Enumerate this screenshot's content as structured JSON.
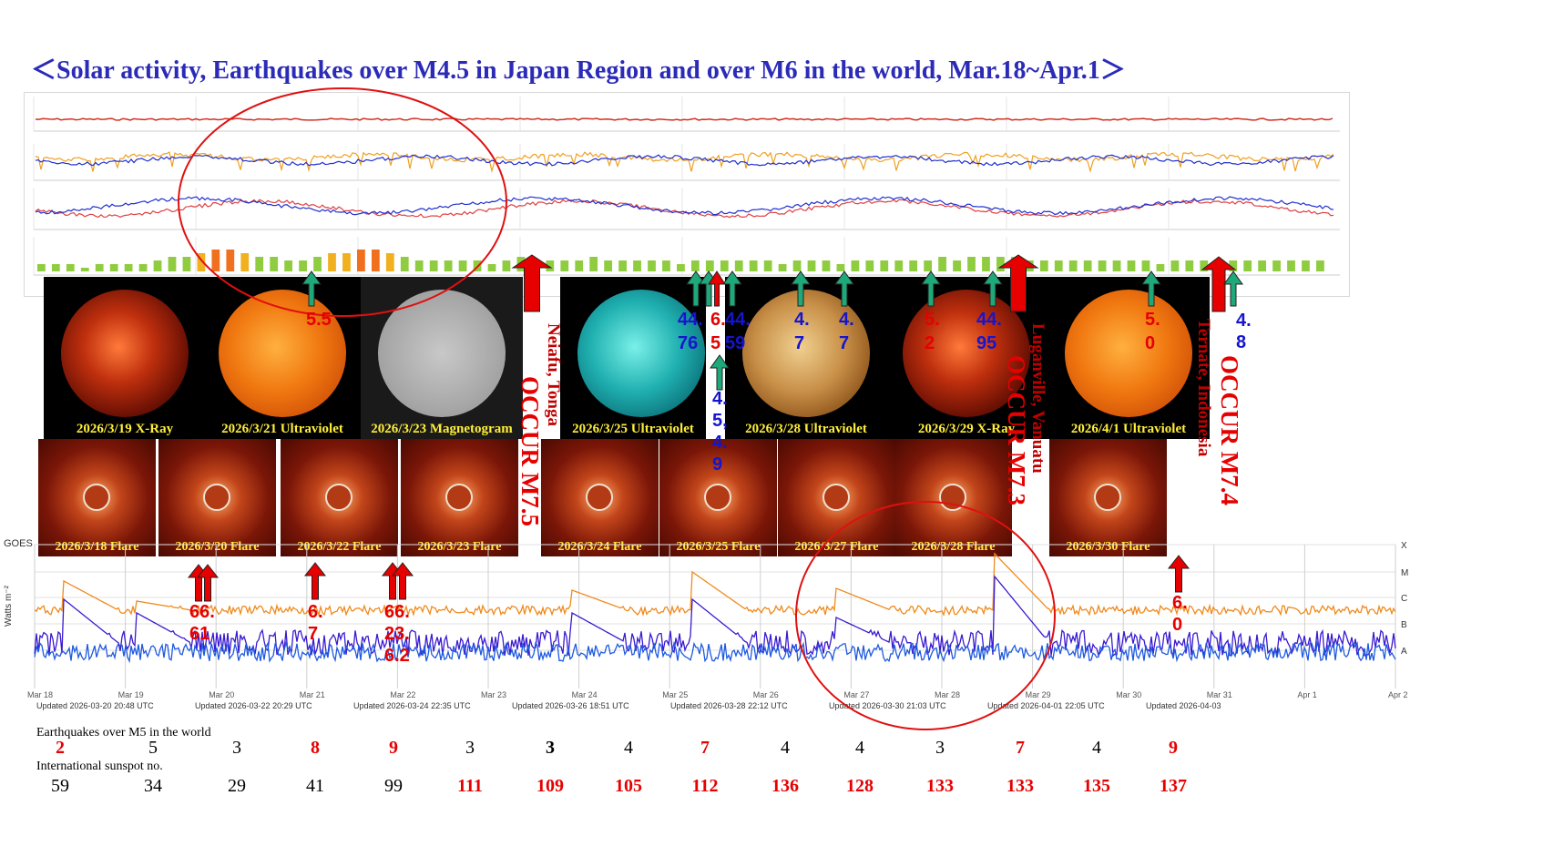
{
  "title": "＜Solar activity, Earthquakes over M4.5 in Japan Region and over M6 in the world, Mar.18~Apr.1＞",
  "colors": {
    "title": "#2b2bb8",
    "red_arrow": "#e60000",
    "green_arrow": "#1fa87a",
    "ray_orange": "#f08a1c",
    "ray_purple": "#3a1ad0",
    "annotation_circle": "#e01010"
  },
  "sun_images": [
    {
      "caption": "2026/3/19 X-Ray",
      "kind": "xray"
    },
    {
      "caption": "2026/3/21 Ultraviolet",
      "kind": "uv-orange"
    },
    {
      "caption": "2026/3/23 Magnetogram",
      "kind": "magnetogram"
    },
    {
      "caption": "2026/3/25 Ultraviolet",
      "kind": "uv-teal"
    },
    {
      "caption": "2026/3/28 Ultraviolet",
      "kind": "uv-bronze"
    },
    {
      "caption": "2026/3/29 X-Ray",
      "kind": "xray"
    },
    {
      "caption": "2026/4/1 Ultraviolet",
      "kind": "uv-orange"
    }
  ],
  "flare_images": [
    {
      "caption": "2026/3/18 Flare"
    },
    {
      "caption": "2026/3/20 Flare"
    },
    {
      "caption": "2026/3/22 Flare"
    },
    {
      "caption": "2026/3/23 Flare"
    },
    {
      "caption": "2026/3/24 Flare"
    },
    {
      "caption": "2026/3/25 Flare"
    },
    {
      "caption": "2026/3/27 Flare"
    },
    {
      "caption": "2026/3/28 Flare"
    },
    {
      "caption": "2026/3/30 Flare"
    }
  ],
  "major_quakes": [
    {
      "occur": "OCCUR M7.5",
      "place": "Neiafu, Tonga"
    },
    {
      "occur": "OCCUR M7.3",
      "place": "Luganville, Vanuatu"
    },
    {
      "occur": "OCCUR M7.4",
      "place": "Ternate, Indonesia"
    }
  ],
  "japan_quake_marks": [
    {
      "text": "5.5",
      "color": "red"
    },
    {
      "text": "44.76",
      "color": "blue"
    },
    {
      "text": "6.5",
      "color": "red"
    },
    {
      "text": "44.59",
      "color": "blue"
    },
    {
      "text": "4.5,4.9",
      "color": "blue"
    },
    {
      "text": "4.7",
      "color": "blue"
    },
    {
      "text": "4.7",
      "color": "blue"
    },
    {
      "text": "5.2",
      "color": "red"
    },
    {
      "text": "44.95",
      "color": "blue"
    },
    {
      "text": "5.0",
      "color": "red"
    },
    {
      "text": "4.8",
      "color": "blue"
    }
  ],
  "world_quake_marks": [
    {
      "text": "66.61"
    },
    {
      "text": "6.7"
    },
    {
      "text": "66.23.6.2"
    },
    {
      "text": "6.0"
    }
  ],
  "xray_panel": {
    "left_title": "GOES",
    "ylabel": "Watts m⁻²",
    "class_labels": [
      "X",
      "M",
      "C",
      "B",
      "A"
    ],
    "date_labels": [
      "Mar 18",
      "Mar 19",
      "Mar 20",
      "Mar 21",
      "Mar 22",
      "Mar 23",
      "Mar 24",
      "Mar 25",
      "Mar 26",
      "Mar 27",
      "Mar 28",
      "Mar 29",
      "Mar 30",
      "Mar 31",
      "Apr 1",
      "Apr 2"
    ],
    "updated_labels": [
      "Updated 2026-03-20 20:48 UTC",
      "Updated 2026-03-22 20:29 UTC",
      "Updated 2026-03-24 22:35 UTC",
      "Updated 2026-03-26 18:51 UTC",
      "Updated 2026-03-28 22:12 UTC",
      "Updated 2026-03-30 21:03 UTC",
      "Updated 2026-04-01 22:05 UTC",
      "Updated 2026-04-03"
    ]
  },
  "chart_data": {
    "type": "table",
    "row_labels": [
      "Earthquakes over M5 in the world",
      "International sunspot no."
    ],
    "columns": [
      "Mar 18",
      "Mar 19",
      "Mar 20",
      "Mar 21",
      "Mar 22",
      "Mar 23",
      "Mar 24",
      "Mar 25",
      "Mar 26",
      "Mar 27",
      "Mar 28",
      "Mar 29",
      "Mar 30",
      "Mar 31",
      "Apr 1"
    ],
    "earthquakes_over_m5": [
      2,
      5,
      3,
      8,
      9,
      3,
      3,
      4,
      7,
      4,
      4,
      3,
      7,
      4,
      9
    ],
    "earthquakes_highlight": [
      true,
      false,
      false,
      true,
      true,
      false,
      false,
      false,
      true,
      false,
      false,
      false,
      true,
      false,
      true
    ],
    "sunspot_numbers": [
      59,
      34,
      29,
      41,
      99,
      111,
      109,
      105,
      112,
      136,
      128,
      133,
      133,
      135,
      137
    ],
    "sunspot_highlight": [
      false,
      false,
      false,
      false,
      false,
      true,
      true,
      true,
      true,
      true,
      true,
      true,
      true,
      true,
      true
    ]
  }
}
